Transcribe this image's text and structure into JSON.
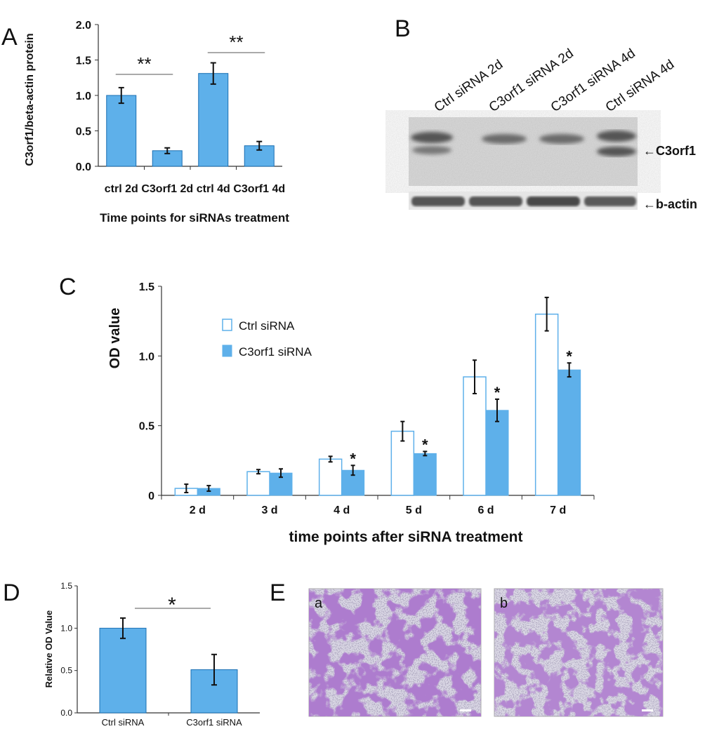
{
  "panel_letters": {
    "a": "A",
    "b": "B",
    "c": "C",
    "d": "D",
    "e": "E"
  },
  "colors": {
    "bar_fill": "#5eb0ea",
    "bar_stroke": "#1a6fb3",
    "ctrl_fill": "#ffffff",
    "axis": "#333333",
    "text": "#111111"
  },
  "chart_data": [
    {
      "id": "A",
      "type": "bar",
      "categories": [
        "ctrl 2d",
        "C3orf1 2d",
        "ctrl 4d",
        "C3orf1 4d"
      ],
      "values": [
        1.0,
        0.22,
        1.31,
        0.29
      ],
      "errors": [
        0.11,
        0.04,
        0.15,
        0.06
      ],
      "yticks": [
        "0.0",
        "0.5",
        "1.0",
        "1.5",
        "2.0"
      ],
      "ylim": [
        0,
        2.0
      ],
      "ylabel": "C3orf1/beta-actin protein",
      "xlabel": "Time points for siRNAs treatment",
      "annotations": [
        "**",
        "**"
      ]
    },
    {
      "id": "C",
      "type": "bar",
      "categories": [
        "2 d",
        "3 d",
        "4 d",
        "5 d",
        "6 d",
        "7 d"
      ],
      "series": [
        {
          "name": "Ctrl  siRNA",
          "values": [
            0.05,
            0.17,
            0.26,
            0.46,
            0.85,
            1.3
          ],
          "errors": [
            0.03,
            0.015,
            0.02,
            0.07,
            0.12,
            0.12
          ]
        },
        {
          "name": "C3orf1 siRNA",
          "values": [
            0.05,
            0.16,
            0.18,
            0.3,
            0.61,
            0.9
          ],
          "errors": [
            0.02,
            0.03,
            0.035,
            0.015,
            0.08,
            0.05
          ]
        }
      ],
      "significance": [
        "",
        "",
        "*",
        "*",
        "*",
        "*"
      ],
      "yticks": [
        "0",
        "0.5",
        "1.0",
        "1.5"
      ],
      "ylim": [
        0,
        1.5
      ],
      "ylabel": "OD value",
      "xlabel": "time points after siRNA treatment",
      "legend": "top-left"
    },
    {
      "id": "D",
      "type": "bar",
      "categories": [
        "Ctrl siRNA",
        "C3orf1 siRNA"
      ],
      "values": [
        1.0,
        0.51
      ],
      "errors": [
        0.12,
        0.18
      ],
      "yticks": [
        "0.0",
        "0.5",
        "1.0",
        "1.5"
      ],
      "ylim": [
        0,
        1.5
      ],
      "ylabel": "Relative OD Value",
      "annotations": [
        "*"
      ]
    }
  ],
  "blot": {
    "lanes": [
      "Ctrl siRNA 2d",
      "C3orf1 siRNA 2d",
      "C3orf1 siRNA 4d",
      "Ctrl siRNA 4d"
    ],
    "label_c3orf1": "←C3orf1",
    "label_actin": "←b-actin"
  },
  "micrographs": {
    "a": "a",
    "b": "b"
  }
}
